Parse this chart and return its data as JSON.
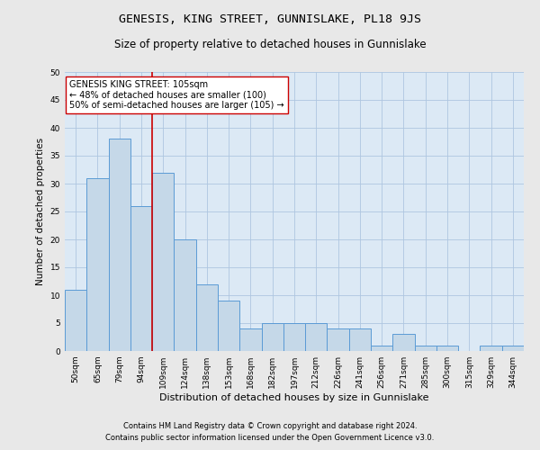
{
  "title": "GENESIS, KING STREET, GUNNISLAKE, PL18 9JS",
  "subtitle": "Size of property relative to detached houses in Gunnislake",
  "xlabel": "Distribution of detached houses by size in Gunnislake",
  "ylabel": "Number of detached properties",
  "categories": [
    "50sqm",
    "65sqm",
    "79sqm",
    "94sqm",
    "109sqm",
    "124sqm",
    "138sqm",
    "153sqm",
    "168sqm",
    "182sqm",
    "197sqm",
    "212sqm",
    "226sqm",
    "241sqm",
    "256sqm",
    "271sqm",
    "285sqm",
    "300sqm",
    "315sqm",
    "329sqm",
    "344sqm"
  ],
  "values": [
    11,
    31,
    38,
    26,
    32,
    20,
    12,
    9,
    4,
    5,
    5,
    5,
    4,
    4,
    1,
    3,
    1,
    1,
    0,
    1,
    1
  ],
  "bar_color": "#c5d8e8",
  "bar_edge_color": "#5b9bd5",
  "background_color": "#dce9f5",
  "fig_background_color": "#e8e8e8",
  "grid_color": "#aec6e0",
  "vline_x": 3.5,
  "vline_color": "#cc0000",
  "annotation_text": "GENESIS KING STREET: 105sqm\n← 48% of detached houses are smaller (100)\n50% of semi-detached houses are larger (105) →",
  "annotation_box_color": "#ffffff",
  "annotation_box_edge": "#cc0000",
  "ylim": [
    0,
    50
  ],
  "yticks": [
    0,
    5,
    10,
    15,
    20,
    25,
    30,
    35,
    40,
    45,
    50
  ],
  "footnote1": "Contains HM Land Registry data © Crown copyright and database right 2024.",
  "footnote2": "Contains public sector information licensed under the Open Government Licence v3.0.",
  "title_fontsize": 9.5,
  "subtitle_fontsize": 8.5,
  "xlabel_fontsize": 8,
  "ylabel_fontsize": 7.5,
  "tick_fontsize": 6.5,
  "annotation_fontsize": 7,
  "footnote_fontsize": 6
}
